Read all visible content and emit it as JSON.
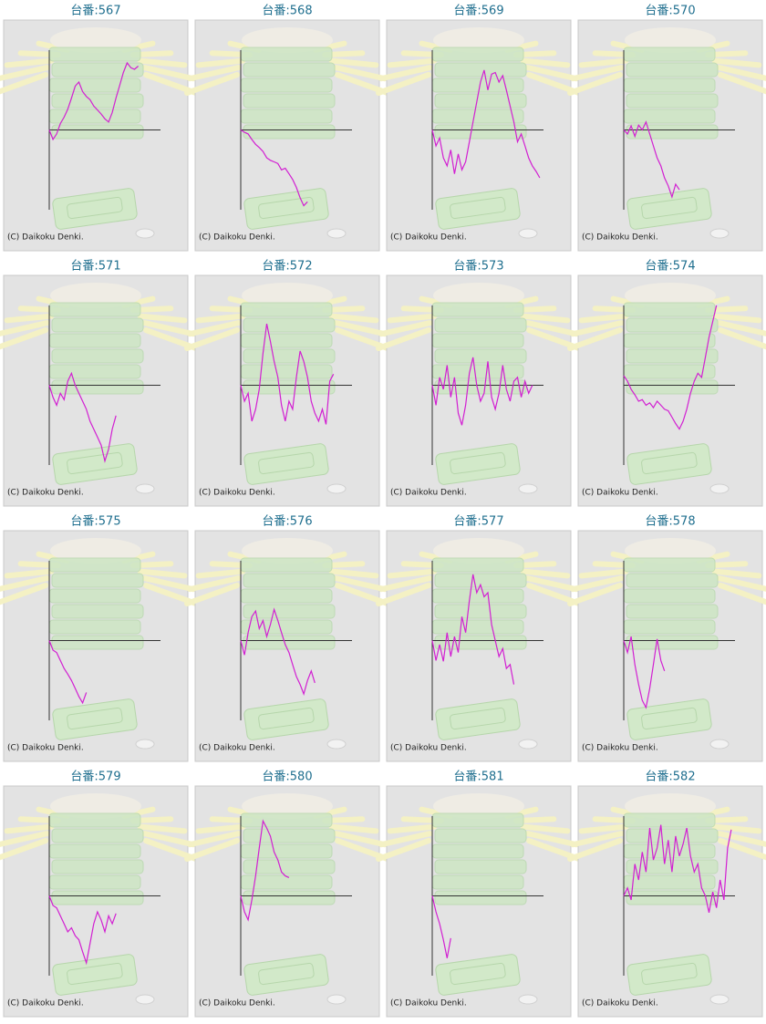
{
  "chart_data": [
    {
      "type": "line",
      "title": "台番:567",
      "footnote": "(C) Daikoku Denki.",
      "color": "#d21fd2",
      "xlim": [
        0,
        30
      ],
      "ylim": [
        -100,
        100
      ],
      "values": [
        0,
        -12,
        -5,
        8,
        16,
        26,
        40,
        55,
        60,
        48,
        42,
        38,
        30,
        25,
        20,
        14,
        10,
        22,
        40,
        56,
        72,
        84,
        78,
        76,
        80
      ]
    },
    {
      "type": "line",
      "title": "台番:568",
      "footnote": "(C) Daikoku Denki.",
      "color": "#d21fd2",
      "xlim": [
        0,
        30
      ],
      "ylim": [
        -100,
        100
      ],
      "values": [
        0,
        -3,
        -5,
        -12,
        -18,
        -22,
        -27,
        -35,
        -38,
        -40,
        -42,
        -50,
        -48,
        -55,
        -62,
        -72,
        -85,
        -95,
        -90
      ]
    },
    {
      "type": "line",
      "title": "台番:569",
      "footnote": "(C) Daikoku Denki.",
      "color": "#d21fd2",
      "xlim": [
        0,
        30
      ],
      "ylim": [
        -100,
        100
      ],
      "values": [
        0,
        -20,
        -10,
        -35,
        -45,
        -25,
        -55,
        -30,
        -50,
        -40,
        -15,
        10,
        35,
        60,
        75,
        50,
        70,
        72,
        60,
        68,
        50,
        30,
        10,
        -15,
        -5,
        -20,
        -35,
        -45,
        -52,
        -60
      ]
    },
    {
      "type": "line",
      "title": "台番:570",
      "footnote": "(C) Daikoku Denki.",
      "color": "#d21fd2",
      "xlim": [
        0,
        30
      ],
      "ylim": [
        -100,
        100
      ],
      "values": [
        0,
        -5,
        5,
        -8,
        6,
        0,
        10,
        -5,
        -20,
        -35,
        -45,
        -60,
        -70,
        -84,
        -68,
        -75
      ]
    },
    {
      "type": "line",
      "title": "台番:571",
      "footnote": "(C) Daikoku Denki.",
      "color": "#d21fd2",
      "xlim": [
        0,
        30
      ],
      "ylim": [
        -100,
        100
      ],
      "values": [
        0,
        -15,
        -25,
        -10,
        -18,
        5,
        15,
        0,
        -10,
        -20,
        -30,
        -45,
        -55,
        -65,
        -75,
        -95,
        -80,
        -55,
        -38
      ]
    },
    {
      "type": "line",
      "title": "台番:572",
      "footnote": "(C) Daikoku Denki.",
      "color": "#d21fd2",
      "xlim": [
        0,
        30
      ],
      "ylim": [
        -100,
        100
      ],
      "values": [
        0,
        -20,
        -10,
        -45,
        -30,
        -5,
        40,
        77,
        55,
        30,
        10,
        -25,
        -45,
        -20,
        -30,
        10,
        43,
        30,
        10,
        -20,
        -35,
        -45,
        -30,
        -49,
        5,
        14
      ]
    },
    {
      "type": "line",
      "title": "台番:573",
      "footnote": "(C) Daikoku Denki.",
      "color": "#d21fd2",
      "xlim": [
        0,
        30
      ],
      "ylim": [
        -100,
        100
      ],
      "values": [
        0,
        -25,
        10,
        -5,
        25,
        -15,
        10,
        -35,
        -50,
        -25,
        15,
        35,
        0,
        -20,
        -10,
        30,
        -15,
        -30,
        -10,
        25,
        -5,
        -20,
        5,
        10,
        -15,
        5,
        -10,
        0
      ]
    },
    {
      "type": "line",
      "title": "台番:574",
      "footnote": "(C) Daikoku Denki.",
      "color": "#d21fd2",
      "xlim": [
        0,
        30
      ],
      "ylim": [
        -100,
        100
      ],
      "values": [
        12,
        5,
        -5,
        -12,
        -20,
        -18,
        -25,
        -22,
        -28,
        -20,
        -25,
        -30,
        -32,
        -40,
        -48,
        -55,
        -45,
        -30,
        -10,
        5,
        15,
        10,
        35,
        60,
        80,
        100
      ]
    },
    {
      "type": "line",
      "title": "台番:575",
      "footnote": "(C) Daikoku Denki.",
      "color": "#d21fd2",
      "xlim": [
        0,
        30
      ],
      "ylim": [
        -100,
        100
      ],
      "values": [
        0,
        -12,
        -15,
        -25,
        -35,
        -42,
        -50,
        -60,
        -70,
        -78,
        -65
      ]
    },
    {
      "type": "line",
      "title": "台番:576",
      "footnote": "(C) Daikoku Denki.",
      "color": "#d21fd2",
      "xlim": [
        0,
        30
      ],
      "ylim": [
        -100,
        100
      ],
      "values": [
        0,
        -18,
        10,
        30,
        37,
        15,
        25,
        5,
        20,
        39,
        25,
        10,
        -5,
        -15,
        -30,
        -45,
        -55,
        -67,
        -50,
        -38,
        -53
      ]
    },
    {
      "type": "line",
      "title": "台番:577",
      "footnote": "(C) Daikoku Denki.",
      "color": "#d21fd2",
      "xlim": [
        0,
        30
      ],
      "ylim": [
        -100,
        100
      ],
      "values": [
        0,
        -25,
        -5,
        -26,
        10,
        -20,
        5,
        -15,
        30,
        10,
        50,
        83,
        60,
        70,
        55,
        60,
        20,
        0,
        -20,
        -10,
        -35,
        -30,
        -55
      ]
    },
    {
      "type": "line",
      "title": "台番:578",
      "footnote": "(C) Daikoku Denki.",
      "color": "#d21fd2",
      "xlim": [
        0,
        30
      ],
      "ylim": [
        -100,
        100
      ],
      "values": [
        0,
        -15,
        5,
        -30,
        -55,
        -75,
        -84,
        -60,
        -30,
        2,
        -25,
        -38
      ]
    },
    {
      "type": "line",
      "title": "台番:579",
      "footnote": "(C) Daikoku Denki.",
      "color": "#d21fd2",
      "xlim": [
        0,
        30
      ],
      "ylim": [
        -100,
        100
      ],
      "values": [
        0,
        -12,
        -15,
        -25,
        -35,
        -45,
        -40,
        -50,
        -55,
        -70,
        -84,
        -60,
        -35,
        -20,
        -30,
        -45,
        -25,
        -35,
        -22
      ]
    },
    {
      "type": "line",
      "title": "台番:580",
      "footnote": "(C) Daikoku Denki.",
      "color": "#d21fd2",
      "xlim": [
        0,
        30
      ],
      "ylim": [
        -100,
        100
      ],
      "values": [
        0,
        -20,
        -30,
        -5,
        25,
        60,
        94,
        85,
        75,
        55,
        45,
        30,
        25,
        23
      ]
    },
    {
      "type": "line",
      "title": "台番:581",
      "footnote": "(C) Daikoku Denki.",
      "color": "#d21fd2",
      "xlim": [
        0,
        30
      ],
      "ylim": [
        -100,
        100
      ],
      "values": [
        0,
        -20,
        -35,
        -55,
        -78,
        -53
      ]
    },
    {
      "type": "line",
      "title": "台番:582",
      "footnote": "(C) Daikoku Denki.",
      "color": "#d21fd2",
      "xlim": [
        0,
        30
      ],
      "ylim": [
        -100,
        100
      ],
      "values": [
        0,
        10,
        -5,
        40,
        20,
        55,
        30,
        85,
        45,
        60,
        89,
        40,
        70,
        30,
        75,
        50,
        65,
        85,
        50,
        30,
        40,
        10,
        0,
        -21,
        5,
        -15,
        20,
        -5,
        60,
        83
      ]
    }
  ]
}
